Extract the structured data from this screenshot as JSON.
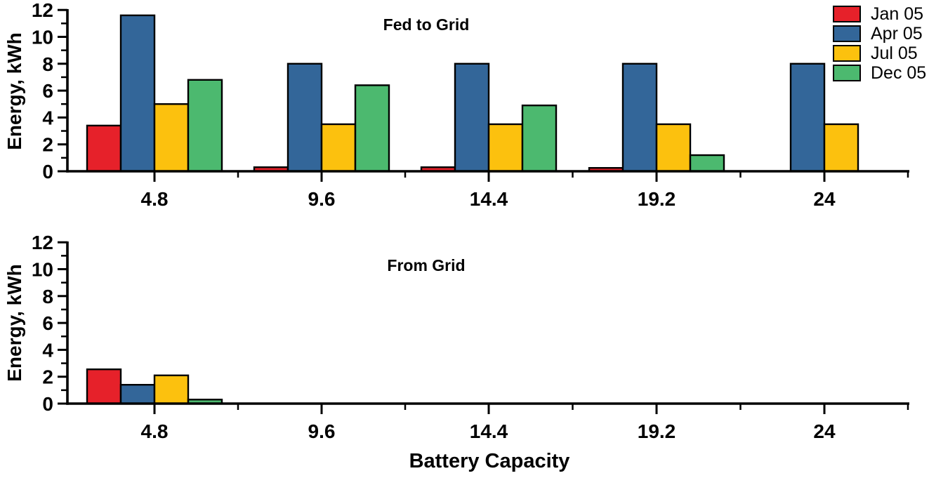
{
  "page": {
    "background": "#ffffff",
    "axis_color": "#000000"
  },
  "legend": {
    "position": "top-right",
    "items": [
      {
        "label": "Jan 05",
        "color": "#E6212A"
      },
      {
        "label": "Apr 05",
        "color": "#336699"
      },
      {
        "label": "Jul 05",
        "color": "#FCC10E"
      },
      {
        "label": "Dec 05",
        "color": "#4CB96F"
      }
    ]
  },
  "chart_data": [
    {
      "type": "bar",
      "title": "Fed to Grid",
      "ylabel": "Energy, kWh",
      "xlabel": "",
      "categories": [
        "4.8",
        "9.6",
        "14.4",
        "19.2",
        "24"
      ],
      "series": [
        {
          "name": "Jan 05",
          "color": "#E6212A",
          "values": [
            3.4,
            0.3,
            0.3,
            0.25,
            0
          ]
        },
        {
          "name": "Apr 05",
          "color": "#336699",
          "values": [
            11.6,
            8.0,
            8.0,
            8.0,
            8.0
          ]
        },
        {
          "name": "Jul 05",
          "color": "#FCC10E",
          "values": [
            5.0,
            3.5,
            3.5,
            3.5,
            3.5
          ]
        },
        {
          "name": "Dec 05",
          "color": "#4CB96F",
          "values": [
            6.8,
            6.4,
            4.9,
            1.2,
            0
          ]
        }
      ],
      "ylim": [
        0,
        12
      ],
      "y_ticks": [
        0,
        2,
        4,
        6,
        8,
        10,
        12
      ],
      "grid": false,
      "legend_position": "top-right"
    },
    {
      "type": "bar",
      "title": "From Grid",
      "ylabel": "Energy, kWh",
      "xlabel": "Battery Capacity",
      "categories": [
        "4.8",
        "9.6",
        "14.4",
        "19.2",
        "24"
      ],
      "series": [
        {
          "name": "Jan 05",
          "color": "#E6212A",
          "values": [
            2.55,
            0,
            0,
            0,
            0
          ]
        },
        {
          "name": "Apr 05",
          "color": "#336699",
          "values": [
            1.4,
            0,
            0,
            0,
            0
          ]
        },
        {
          "name": "Jul 05",
          "color": "#FCC10E",
          "values": [
            2.1,
            0,
            0,
            0,
            0
          ]
        },
        {
          "name": "Dec 05",
          "color": "#4CB96F",
          "values": [
            0.3,
            0,
            0,
            0,
            0
          ]
        }
      ],
      "ylim": [
        0,
        12
      ],
      "y_ticks": [
        0,
        2,
        4,
        6,
        8,
        10,
        12
      ],
      "grid": false,
      "legend_position": "none"
    }
  ]
}
